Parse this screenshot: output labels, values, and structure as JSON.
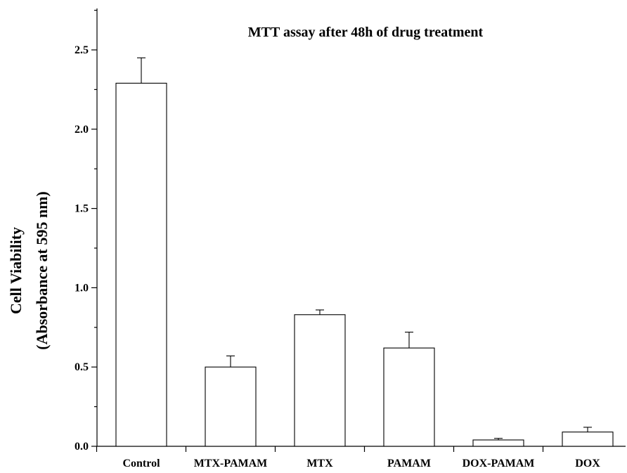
{
  "chart_data": {
    "type": "bar",
    "title": "MTT assay after 48h of drug treatment",
    "ylabel": [
      "Cell Viability",
      "(Absorbance at 595 nm)"
    ],
    "xlabel": "",
    "categories": [
      "Control",
      "MTX-PAMAM",
      "MTX",
      "PAMAM",
      "DOX-PAMAM",
      "DOX"
    ],
    "values": [
      2.29,
      0.5,
      0.83,
      0.62,
      0.04,
      0.09
    ],
    "errors": [
      0.16,
      0.07,
      0.03,
      0.1,
      0.01,
      0.03
    ],
    "ylim": [
      0,
      2.8
    ],
    "yticks": [
      0.0,
      0.5,
      1.0,
      1.5,
      2.0,
      2.5
    ],
    "ytick_labels": [
      "0.0",
      "0.5",
      "1.0",
      "1.5",
      "2.0",
      "2.5"
    ],
    "grid": false,
    "bar_fill": "#ffffff",
    "bar_stroke": "#000000"
  }
}
